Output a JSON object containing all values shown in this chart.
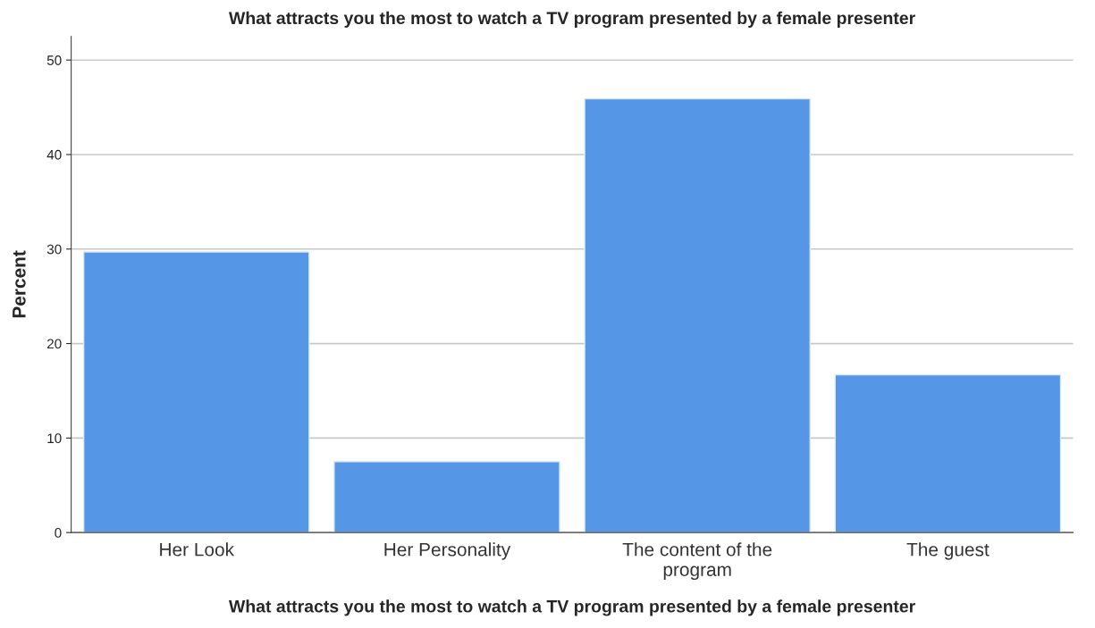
{
  "chart_data": {
    "type": "bar",
    "title": "What attracts you the most to watch a TV program presented by a female presenter",
    "xlabel": "What attracts you the most to watch a TV program presented by a female presenter",
    "ylabel": "Percent",
    "categories": [
      "Her Look",
      "Her Personality",
      "The content of the program",
      "The guest"
    ],
    "values": [
      29.7,
      7.5,
      45.9,
      16.7
    ],
    "color": "#5596e6",
    "ylim": [
      0,
      52.5
    ],
    "yticks": [
      0,
      10,
      20,
      30,
      40,
      50
    ],
    "grid": "y"
  }
}
